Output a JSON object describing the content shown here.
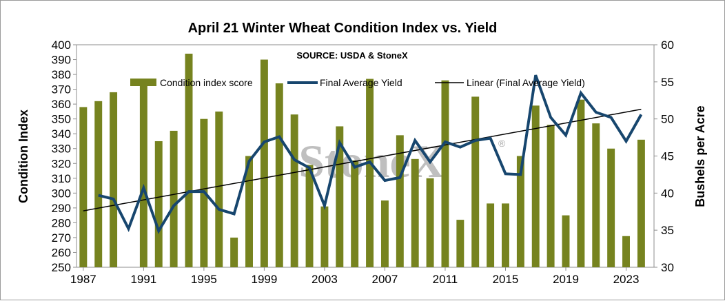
{
  "chart_data": {
    "type": "bar",
    "title": "April 21 Winter Wheat Condition Index vs. Yield",
    "subtitle": "SOURCE: USDA & StoneX",
    "watermark": "StoneX",
    "ylabel": "Condition Index",
    "y2label": "Bushels per Acre",
    "ylim": [
      250,
      400
    ],
    "y2lim": [
      30,
      60
    ],
    "y_ticks": [
      400,
      390,
      380,
      370,
      360,
      350,
      340,
      330,
      320,
      310,
      300,
      290,
      280,
      270,
      260,
      250
    ],
    "y2_ticks": [
      60,
      55,
      50,
      45,
      40,
      35,
      30
    ],
    "x_tick_labels": [
      "1987",
      "1991",
      "1995",
      "1999",
      "2003",
      "2007",
      "2011",
      "2015",
      "2019",
      "2023"
    ],
    "x": [
      1987,
      1988,
      1989,
      1990,
      1991,
      1992,
      1993,
      1994,
      1995,
      1996,
      1997,
      1998,
      1999,
      2000,
      2001,
      2002,
      2003,
      2004,
      2005,
      2006,
      2007,
      2008,
      2009,
      2010,
      2011,
      2012,
      2013,
      2014,
      2015,
      2016,
      2017,
      2018,
      2019,
      2020,
      2021,
      2022,
      2023,
      2024
    ],
    "series": [
      {
        "name": "Condition index score",
        "kind": "bar",
        "axis": "left",
        "color": "#76831f",
        "values": [
          358,
          362,
          368,
          null,
          375,
          335,
          342,
          394,
          350,
          355,
          270,
          325,
          390,
          374,
          353,
          319,
          291,
          345,
          322,
          377,
          295,
          339,
          323,
          310,
          376,
          282,
          365,
          293,
          293,
          325,
          359,
          346,
          285,
          363,
          347,
          330,
          271,
          336
        ]
      },
      {
        "name": "Final Average Yield",
        "kind": "line",
        "axis": "right",
        "color": "#17466e",
        "values": [
          null,
          39.7,
          39.2,
          35.2,
          40.7,
          34.9,
          38.3,
          40.2,
          40.2,
          37.8,
          37.2,
          44.3,
          46.9,
          47.6,
          44.5,
          43.4,
          38.3,
          46.8,
          43.5,
          44.2,
          41.7,
          42.1,
          47.1,
          44.2,
          46.9,
          46.2,
          47.1,
          47.4,
          42.6,
          42.5,
          55.9,
          50.2,
          47.8,
          53.5,
          50.9,
          50.2,
          47.0,
          50.6
        ]
      },
      {
        "name": "Linear (Final Average Yield)",
        "kind": "trendline",
        "axis": "right",
        "color": "#000000",
        "values_at_ends": [
          37.6,
          51.3
        ]
      }
    ],
    "legend": "top-left, inside plot"
  }
}
